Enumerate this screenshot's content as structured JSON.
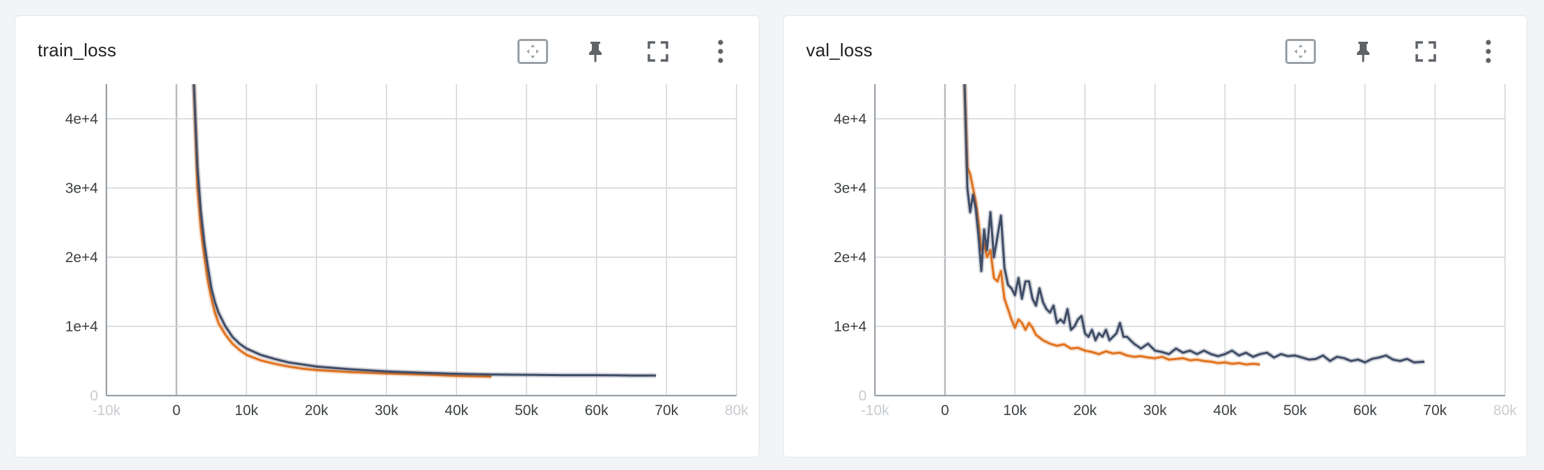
{
  "icons": {
    "fit_domain": "fit-to-data-icon",
    "pin": "pin-icon",
    "fullscreen": "fullscreen-icon",
    "menu": "more-vertical-icon"
  },
  "colors": {
    "run_a": "#3f4c66",
    "run_b": "#e0721e",
    "grid": "#d4d6d9"
  },
  "chart_data": [
    {
      "type": "line",
      "title": "train_loss",
      "xlabel": "",
      "ylabel": "",
      "xlim": [
        -10000,
        80000
      ],
      "ylim": [
        0,
        45000
      ],
      "x_ticks": [
        -10000,
        0,
        10000,
        20000,
        30000,
        40000,
        50000,
        60000,
        70000,
        80000
      ],
      "x_tick_labels": [
        "-10k",
        "0",
        "10k",
        "20k",
        "30k",
        "40k",
        "50k",
        "60k",
        "70k",
        "80k"
      ],
      "y_ticks": [
        0,
        10000,
        20000,
        30000,
        40000
      ],
      "y_tick_labels": [
        "0",
        "1e+4",
        "2e+4",
        "3e+4",
        "4e+4"
      ],
      "grid": true,
      "series": [
        {
          "color": "#3f4c66",
          "x": [
            2500,
            3000,
            3500,
            4000,
            4500,
            5000,
            5500,
            6000,
            7000,
            8000,
            9000,
            10000,
            12000,
            14000,
            16000,
            18000,
            20000,
            25000,
            30000,
            35000,
            40000,
            45000,
            50000,
            55000,
            60000,
            65000,
            68500
          ],
          "y": [
            45000,
            33000,
            26500,
            22000,
            18500,
            15500,
            13500,
            12000,
            10000,
            8500,
            7500,
            6800,
            5900,
            5300,
            4800,
            4500,
            4200,
            3800,
            3500,
            3300,
            3150,
            3050,
            3000,
            2950,
            2950,
            2900,
            2900
          ]
        },
        {
          "color": "#e0721e",
          "x": [
            2500,
            3000,
            3500,
            4000,
            4500,
            5000,
            5500,
            6000,
            7000,
            8000,
            9000,
            10000,
            12000,
            14000,
            16000,
            18000,
            20000,
            25000,
            30000,
            35000,
            40000,
            45000
          ],
          "y": [
            45000,
            30000,
            24000,
            20000,
            16500,
            14000,
            12000,
            10500,
            8800,
            7500,
            6600,
            5900,
            5100,
            4600,
            4200,
            3900,
            3700,
            3400,
            3200,
            3050,
            2850,
            2750
          ]
        }
      ]
    },
    {
      "type": "line",
      "title": "val_loss",
      "xlabel": "",
      "ylabel": "",
      "xlim": [
        -10000,
        80000
      ],
      "ylim": [
        0,
        45000
      ],
      "x_ticks": [
        -10000,
        0,
        10000,
        20000,
        30000,
        40000,
        50000,
        60000,
        70000,
        80000
      ],
      "x_tick_labels": [
        "-10k",
        "0",
        "10k",
        "20k",
        "30k",
        "40k",
        "50k",
        "60k",
        "70k",
        "80k"
      ],
      "y_ticks": [
        0,
        10000,
        20000,
        30000,
        40000
      ],
      "y_tick_labels": [
        "0",
        "1e+4",
        "2e+4",
        "3e+4",
        "4e+4"
      ],
      "grid": true,
      "series": [
        {
          "color": "#3f4c66",
          "x": [
            2800,
            3200,
            3600,
            4000,
            4400,
            4800,
            5200,
            5600,
            6000,
            6500,
            7000,
            7500,
            8000,
            8500,
            9000,
            9500,
            10000,
            10500,
            11000,
            11500,
            12000,
            12500,
            13000,
            13500,
            14000,
            14500,
            15000,
            15500,
            16000,
            16500,
            17000,
            17500,
            18000,
            18500,
            19000,
            19500,
            20000,
            20500,
            21000,
            21500,
            22000,
            22500,
            23000,
            23500,
            24000,
            24500,
            25000,
            25500,
            26000,
            27000,
            28000,
            29000,
            30000,
            31000,
            32000,
            33000,
            34000,
            35000,
            36000,
            37000,
            38000,
            39000,
            40000,
            41000,
            42000,
            43000,
            44000,
            45000,
            46000,
            47000,
            48000,
            49000,
            50000,
            51000,
            52000,
            53000,
            54000,
            55000,
            56000,
            57000,
            58000,
            59000,
            60000,
            61000,
            62000,
            63000,
            64000,
            65000,
            66000,
            67000,
            68500
          ],
          "y": [
            45000,
            30000,
            26500,
            29000,
            27000,
            23000,
            18000,
            24000,
            21000,
            26500,
            20000,
            23000,
            26000,
            18500,
            16000,
            15500,
            14500,
            17000,
            14000,
            16500,
            16500,
            14000,
            13000,
            15500,
            13500,
            12500,
            12000,
            13000,
            10500,
            11000,
            10500,
            12500,
            9500,
            10000,
            11000,
            11500,
            9000,
            8500,
            9500,
            8000,
            9000,
            8500,
            9500,
            8000,
            8500,
            9000,
            10500,
            8500,
            8500,
            7500,
            6800,
            7500,
            6500,
            6300,
            6000,
            6800,
            6200,
            6500,
            6000,
            6500,
            6000,
            5700,
            6000,
            6500,
            5800,
            6200,
            5600,
            6000,
            6200,
            5500,
            6000,
            5700,
            5800,
            5500,
            5200,
            5300,
            5800,
            5000,
            5600,
            5400,
            5000,
            5200,
            4800,
            5300,
            5500,
            5800,
            5200,
            5000,
            5300,
            4800,
            4900
          ]
        },
        {
          "color": "#e0721e",
          "x": [
            2800,
            3200,
            3600,
            4000,
            4400,
            4800,
            5200,
            5600,
            6000,
            6500,
            7000,
            7500,
            8000,
            8500,
            9000,
            9500,
            10000,
            10500,
            11000,
            11500,
            12000,
            12500,
            13000,
            14000,
            15000,
            16000,
            17000,
            18000,
            19000,
            20000,
            21000,
            22000,
            23000,
            24000,
            25000,
            26000,
            27000,
            28000,
            29000,
            30000,
            31000,
            32000,
            33000,
            34000,
            35000,
            36000,
            37000,
            38000,
            39000,
            40000,
            41000,
            42000,
            43000,
            44000,
            45000
          ],
          "y": [
            45000,
            33000,
            32000,
            30000,
            28000,
            25000,
            21000,
            22000,
            20000,
            21000,
            17000,
            16500,
            18000,
            14000,
            12500,
            11000,
            9800,
            11000,
            10500,
            9500,
            10500,
            9800,
            8800,
            8000,
            7500,
            7200,
            7400,
            6800,
            6900,
            6500,
            6300,
            6000,
            6400,
            6100,
            6200,
            5800,
            5600,
            5700,
            5500,
            5400,
            5600,
            5200,
            5300,
            5400,
            5100,
            5200,
            5000,
            4900,
            4700,
            4800,
            4600,
            4700,
            4500,
            4600,
            4500
          ]
        }
      ]
    }
  ]
}
